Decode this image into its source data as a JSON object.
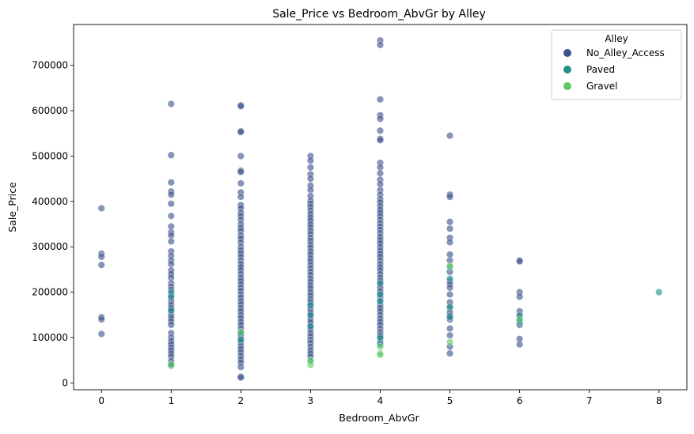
{
  "chart_data": {
    "type": "scatter",
    "title": "Sale_Price vs Bedroom_AbvGr by Alley",
    "xlabel": "Bedroom_AbvGr",
    "ylabel": "Sale_Price",
    "xlim": [
      -0.4,
      8.4
    ],
    "ylim": [
      -15000,
      790000
    ],
    "x_ticks": [
      0,
      1,
      2,
      3,
      4,
      5,
      6,
      7,
      8
    ],
    "y_ticks": [
      0,
      100000,
      200000,
      300000,
      400000,
      500000,
      600000,
      700000
    ],
    "grid": false,
    "legend_position": "top-right",
    "legend_title": "Alley",
    "series": [
      {
        "name": "No_Alley_Access",
        "color": "#3b528b",
        "points": [
          [
            0,
            385000
          ],
          [
            0,
            285000
          ],
          [
            0,
            278000
          ],
          [
            0,
            260000
          ],
          [
            0,
            145000
          ],
          [
            0,
            140000
          ],
          [
            0,
            108000
          ],
          [
            1,
            615000
          ],
          [
            1,
            502000
          ],
          [
            1,
            442000
          ],
          [
            1,
            422000
          ],
          [
            1,
            415000
          ],
          [
            1,
            395000
          ],
          [
            1,
            368000
          ],
          [
            1,
            345000
          ],
          [
            1,
            332000
          ],
          [
            1,
            325000
          ],
          [
            1,
            312000
          ],
          [
            1,
            290000
          ],
          [
            1,
            280000
          ],
          [
            1,
            270000
          ],
          [
            1,
            262000
          ],
          [
            1,
            248000
          ],
          [
            1,
            240000
          ],
          [
            1,
            232000
          ],
          [
            1,
            220000
          ],
          [
            1,
            212000
          ],
          [
            1,
            205000
          ],
          [
            1,
            195000
          ],
          [
            1,
            188000
          ],
          [
            1,
            180000
          ],
          [
            1,
            172000
          ],
          [
            1,
            165000
          ],
          [
            1,
            158000
          ],
          [
            1,
            150000
          ],
          [
            1,
            143000
          ],
          [
            1,
            136000
          ],
          [
            1,
            128000
          ],
          [
            1,
            110000
          ],
          [
            1,
            100000
          ],
          [
            1,
            92000
          ],
          [
            1,
            85000
          ],
          [
            1,
            78000
          ],
          [
            1,
            72000
          ],
          [
            1,
            65000
          ],
          [
            1,
            58000
          ],
          [
            1,
            48000
          ],
          [
            1,
            42000
          ],
          [
            2,
            612000
          ],
          [
            2,
            610000
          ],
          [
            2,
            555000
          ],
          [
            2,
            553000
          ],
          [
            2,
            500000
          ],
          [
            2,
            468000
          ],
          [
            2,
            465000
          ],
          [
            2,
            440000
          ],
          [
            2,
            420000
          ],
          [
            2,
            410000
          ],
          [
            2,
            392000
          ],
          [
            2,
            385000
          ],
          [
            2,
            375000
          ],
          [
            2,
            368000
          ],
          [
            2,
            360000
          ],
          [
            2,
            350000
          ],
          [
            2,
            342000
          ],
          [
            2,
            335000
          ],
          [
            2,
            325000
          ],
          [
            2,
            318000
          ],
          [
            2,
            310000
          ],
          [
            2,
            300000
          ],
          [
            2,
            292000
          ],
          [
            2,
            285000
          ],
          [
            2,
            278000
          ],
          [
            2,
            270000
          ],
          [
            2,
            262000
          ],
          [
            2,
            255000
          ],
          [
            2,
            248000
          ],
          [
            2,
            240000
          ],
          [
            2,
            232000
          ],
          [
            2,
            225000
          ],
          [
            2,
            218000
          ],
          [
            2,
            210000
          ],
          [
            2,
            203000
          ],
          [
            2,
            195000
          ],
          [
            2,
            188000
          ],
          [
            2,
            180000
          ],
          [
            2,
            173000
          ],
          [
            2,
            165000
          ],
          [
            2,
            158000
          ],
          [
            2,
            150000
          ],
          [
            2,
            143000
          ],
          [
            2,
            135000
          ],
          [
            2,
            128000
          ],
          [
            2,
            120000
          ],
          [
            2,
            112000
          ],
          [
            2,
            105000
          ],
          [
            2,
            98000
          ],
          [
            2,
            90000
          ],
          [
            2,
            82000
          ],
          [
            2,
            75000
          ],
          [
            2,
            68000
          ],
          [
            2,
            60000
          ],
          [
            2,
            52000
          ],
          [
            2,
            45000
          ],
          [
            2,
            35000
          ],
          [
            2,
            14000
          ],
          [
            2,
            12000
          ],
          [
            3,
            500000
          ],
          [
            3,
            490000
          ],
          [
            3,
            475000
          ],
          [
            3,
            460000
          ],
          [
            3,
            450000
          ],
          [
            3,
            435000
          ],
          [
            3,
            425000
          ],
          [
            3,
            412000
          ],
          [
            3,
            402000
          ],
          [
            3,
            395000
          ],
          [
            3,
            388000
          ],
          [
            3,
            380000
          ],
          [
            3,
            372000
          ],
          [
            3,
            365000
          ],
          [
            3,
            358000
          ],
          [
            3,
            350000
          ],
          [
            3,
            343000
          ],
          [
            3,
            335000
          ],
          [
            3,
            328000
          ],
          [
            3,
            320000
          ],
          [
            3,
            313000
          ],
          [
            3,
            305000
          ],
          [
            3,
            298000
          ],
          [
            3,
            290000
          ],
          [
            3,
            283000
          ],
          [
            3,
            275000
          ],
          [
            3,
            268000
          ],
          [
            3,
            260000
          ],
          [
            3,
            253000
          ],
          [
            3,
            245000
          ],
          [
            3,
            238000
          ],
          [
            3,
            230000
          ],
          [
            3,
            223000
          ],
          [
            3,
            215000
          ],
          [
            3,
            208000
          ],
          [
            3,
            200000
          ],
          [
            3,
            193000
          ],
          [
            3,
            185000
          ],
          [
            3,
            178000
          ],
          [
            3,
            170000
          ],
          [
            3,
            163000
          ],
          [
            3,
            155000
          ],
          [
            3,
            148000
          ],
          [
            3,
            140000
          ],
          [
            3,
            133000
          ],
          [
            3,
            125000
          ],
          [
            3,
            118000
          ],
          [
            3,
            110000
          ],
          [
            3,
            103000
          ],
          [
            3,
            95000
          ],
          [
            3,
            88000
          ],
          [
            3,
            80000
          ],
          [
            3,
            72000
          ],
          [
            3,
            65000
          ],
          [
            3,
            58000
          ],
          [
            4,
            755000
          ],
          [
            4,
            745000
          ],
          [
            4,
            625000
          ],
          [
            4,
            590000
          ],
          [
            4,
            582000
          ],
          [
            4,
            556000
          ],
          [
            4,
            538000
          ],
          [
            4,
            535000
          ],
          [
            4,
            485000
          ],
          [
            4,
            475000
          ],
          [
            4,
            462000
          ],
          [
            4,
            448000
          ],
          [
            4,
            438000
          ],
          [
            4,
            425000
          ],
          [
            4,
            415000
          ],
          [
            4,
            405000
          ],
          [
            4,
            398000
          ],
          [
            4,
            390000
          ],
          [
            4,
            382000
          ],
          [
            4,
            375000
          ],
          [
            4,
            368000
          ],
          [
            4,
            360000
          ],
          [
            4,
            352000
          ],
          [
            4,
            345000
          ],
          [
            4,
            338000
          ],
          [
            4,
            330000
          ],
          [
            4,
            322000
          ],
          [
            4,
            315000
          ],
          [
            4,
            308000
          ],
          [
            4,
            300000
          ],
          [
            4,
            292000
          ],
          [
            4,
            285000
          ],
          [
            4,
            278000
          ],
          [
            4,
            270000
          ],
          [
            4,
            262000
          ],
          [
            4,
            255000
          ],
          [
            4,
            248000
          ],
          [
            4,
            240000
          ],
          [
            4,
            232000
          ],
          [
            4,
            225000
          ],
          [
            4,
            218000
          ],
          [
            4,
            210000
          ],
          [
            4,
            202000
          ],
          [
            4,
            195000
          ],
          [
            4,
            188000
          ],
          [
            4,
            180000
          ],
          [
            4,
            172000
          ],
          [
            4,
            165000
          ],
          [
            4,
            158000
          ],
          [
            4,
            150000
          ],
          [
            4,
            142000
          ],
          [
            4,
            135000
          ],
          [
            4,
            128000
          ],
          [
            4,
            120000
          ],
          [
            4,
            112000
          ],
          [
            4,
            105000
          ],
          [
            4,
            98000
          ],
          [
            4,
            90000
          ],
          [
            5,
            545000
          ],
          [
            5,
            415000
          ],
          [
            5,
            410000
          ],
          [
            5,
            355000
          ],
          [
            5,
            340000
          ],
          [
            5,
            320000
          ],
          [
            5,
            310000
          ],
          [
            5,
            283000
          ],
          [
            5,
            270000
          ],
          [
            5,
            245000
          ],
          [
            5,
            225000
          ],
          [
            5,
            218000
          ],
          [
            5,
            210000
          ],
          [
            5,
            195000
          ],
          [
            5,
            178000
          ],
          [
            5,
            165000
          ],
          [
            5,
            155000
          ],
          [
            5,
            148000
          ],
          [
            5,
            140000
          ],
          [
            5,
            120000
          ],
          [
            5,
            105000
          ],
          [
            5,
            80000
          ],
          [
            5,
            65000
          ],
          [
            6,
            270000
          ],
          [
            6,
            268000
          ],
          [
            6,
            200000
          ],
          [
            6,
            190000
          ],
          [
            6,
            158000
          ],
          [
            6,
            150000
          ],
          [
            6,
            140000
          ],
          [
            6,
            128000
          ],
          [
            6,
            97000
          ],
          [
            6,
            85000
          ]
        ]
      },
      {
        "name": "Paved",
        "color": "#21918c",
        "points": [
          [
            1,
            200000
          ],
          [
            1,
            190000
          ],
          [
            1,
            160000
          ],
          [
            1,
            38000
          ],
          [
            2,
            108000
          ],
          [
            2,
            95000
          ],
          [
            3,
            172000
          ],
          [
            3,
            150000
          ],
          [
            3,
            125000
          ],
          [
            3,
            50000
          ],
          [
            4,
            220000
          ],
          [
            4,
            195000
          ],
          [
            4,
            180000
          ],
          [
            4,
            100000
          ],
          [
            4,
            85000
          ],
          [
            5,
            255000
          ],
          [
            5,
            230000
          ],
          [
            5,
            168000
          ],
          [
            5,
            145000
          ],
          [
            6,
            148000
          ],
          [
            6,
            135000
          ],
          [
            8,
            200000
          ]
        ]
      },
      {
        "name": "Gravel",
        "color": "#5ec962",
        "points": [
          [
            1,
            40000
          ],
          [
            2,
            112000
          ],
          [
            3,
            40000
          ],
          [
            3,
            48000
          ],
          [
            4,
            65000
          ],
          [
            4,
            62000
          ],
          [
            4,
            80000
          ],
          [
            5,
            258000
          ],
          [
            5,
            90000
          ],
          [
            6,
            140000
          ]
        ]
      }
    ]
  }
}
